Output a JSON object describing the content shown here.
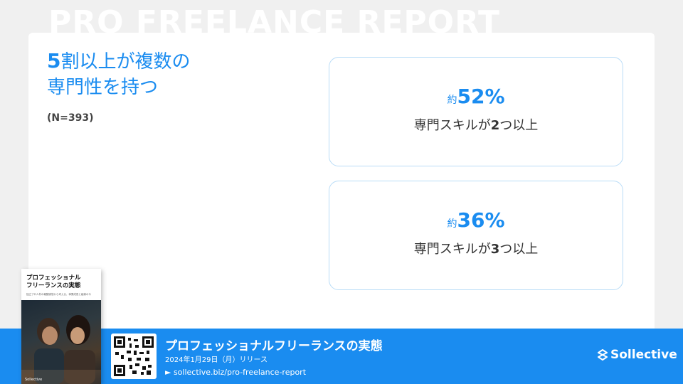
{
  "background_title": "PRO FREELANCE REPORT",
  "headline": {
    "line1_num": "5",
    "line1_rest": "割以上が複数の",
    "line2": "専門性を持つ"
  },
  "sample_size": "(N=393)",
  "stats": [
    {
      "prefix": "約",
      "percent": "52%",
      "label_pre": "専門スキルが",
      "label_num": "2",
      "label_post": "つ以上"
    },
    {
      "prefix": "約",
      "percent": "36%",
      "label_pre": "専門スキルが",
      "label_num": "3",
      "label_post": "つ以上"
    }
  ],
  "book": {
    "title_line1": "プロフェッショナル",
    "title_line2": "フリーランスの実態",
    "subtitle": "独立プロ人材の報酬実態から考える、事業成長と組織の今",
    "brand": "Sollective"
  },
  "footer": {
    "report_title": "プロフェッショナルフリーランスの実態",
    "release": "2024年1月29日（月）リリース",
    "url": "► sollective.biz/pro-freelance-report",
    "logo": "Sollective"
  },
  "colors": {
    "accent": "#1a8cf0",
    "box_border": "#b9dcf7"
  }
}
